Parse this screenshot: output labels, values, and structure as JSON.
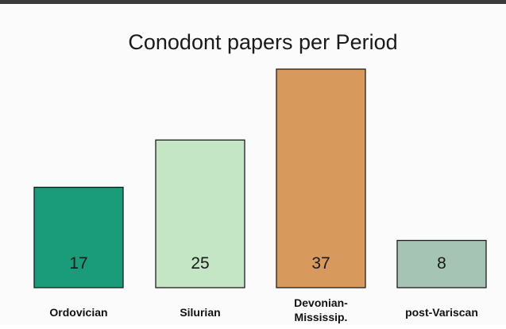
{
  "chart_data": {
    "type": "bar",
    "title": "Conodont papers per Period",
    "xlabel": "",
    "ylabel": "",
    "categories": [
      [
        "Ordovician"
      ],
      [
        "Silurian"
      ],
      [
        "Devonian-",
        "Mississip."
      ],
      [
        "post-Variscan"
      ]
    ],
    "values": [
      17,
      25,
      37,
      8
    ],
    "ylim": [
      0,
      40
    ],
    "grid": false,
    "legend": "none",
    "bar_colors": [
      "#1a9b7a",
      "#c5e6c4",
      "#d89a5c",
      "#a6c4b4"
    ]
  }
}
